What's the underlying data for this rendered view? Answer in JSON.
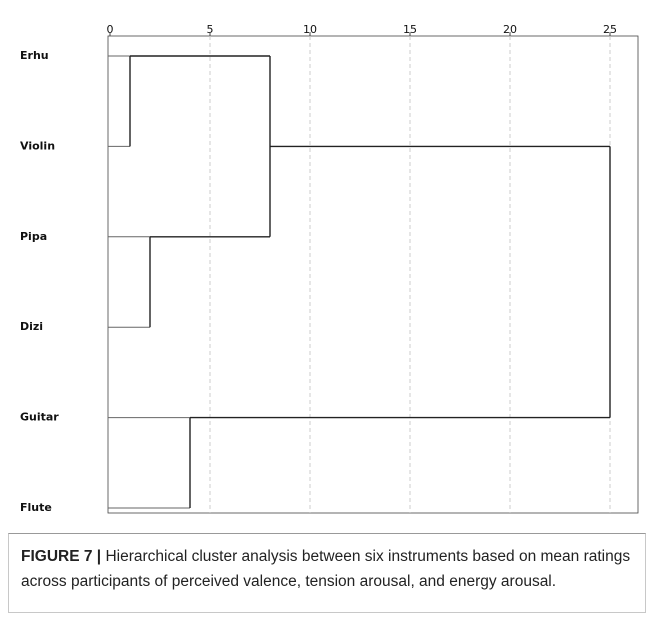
{
  "chart_data": {
    "type": "dendrogram",
    "leaves": [
      "Erhu",
      "Violin",
      "Pipa",
      "Dizi",
      "Guitar",
      "Flute"
    ],
    "merges": [
      {
        "join": [
          0,
          1
        ],
        "height": 1
      },
      {
        "join": [
          2,
          3
        ],
        "height": 2
      },
      {
        "join": [
          4,
          5
        ],
        "height": 4
      },
      {
        "join": [
          6,
          7
        ],
        "height": 8
      },
      {
        "join": [
          9,
          8
        ],
        "height": 25
      }
    ],
    "xlim": [
      0,
      25
    ],
    "xticks": [
      0,
      5,
      10,
      15,
      20,
      25
    ],
    "grid": true,
    "caption_label": "FIGURE 7 |",
    "caption": "Hierarchical cluster analysis between six instruments based on mean ratings across participants of perceived valence, tension arousal, and energy arousal."
  }
}
